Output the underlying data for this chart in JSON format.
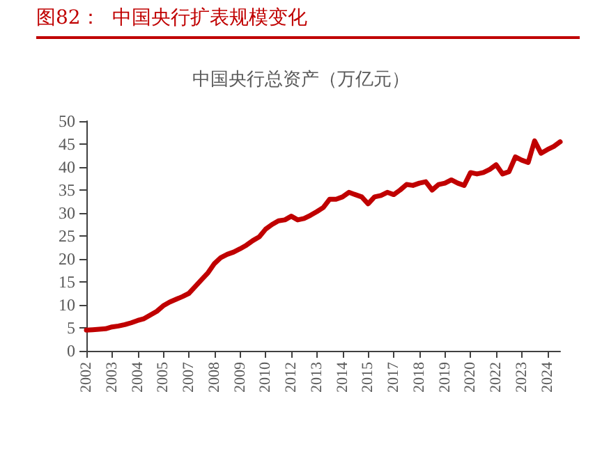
{
  "chart_data": {
    "type": "line",
    "title": "图82：  中国央行扩表规模变化",
    "subtitle": "中国央行总资产（万亿元）",
    "categories": [
      "2002",
      null,
      null,
      null,
      "2003",
      null,
      null,
      null,
      "2004",
      null,
      null,
      null,
      "2005",
      null,
      null,
      null,
      "2007",
      null,
      null,
      null,
      "2008",
      null,
      null,
      null,
      "2009",
      null,
      null,
      null,
      "2010",
      null,
      null,
      null,
      "2012",
      null,
      null,
      null,
      "2013",
      null,
      null,
      null,
      "2014",
      null,
      null,
      null,
      "2015",
      null,
      null,
      null,
      "2017",
      null,
      null,
      null,
      "2018",
      null,
      null,
      null,
      "2019",
      null,
      null,
      null,
      "2020",
      null,
      null,
      null,
      "2022",
      null,
      null,
      null,
      "2023",
      null,
      null,
      null,
      "2024",
      null,
      null
    ],
    "series": [
      {
        "color": "#c00000",
        "values": [
          4.5,
          4.6,
          4.7,
          4.8,
          5.2,
          5.4,
          5.7,
          6.1,
          6.6,
          7.0,
          7.8,
          8.6,
          9.8,
          10.6,
          11.2,
          11.8,
          12.5,
          14.0,
          15.5,
          17.0,
          19.0,
          20.3,
          21.0,
          21.5,
          22.2,
          23.0,
          24.0,
          24.8,
          26.5,
          27.5,
          28.3,
          28.5,
          29.3,
          28.5,
          28.8,
          29.5,
          30.3,
          31.2,
          33.0,
          33.0,
          33.5,
          34.5,
          34.0,
          33.5,
          32.0,
          33.5,
          33.8,
          34.5,
          34.0,
          35.0,
          36.2,
          36.0,
          36.5,
          36.8,
          35.0,
          36.2,
          36.5,
          37.2,
          36.5,
          36.0,
          38.8,
          38.5,
          38.8,
          39.5,
          40.5,
          38.5,
          39.0,
          42.2,
          41.5,
          41.0,
          45.7,
          43.0,
          43.8,
          44.5,
          45.5
        ]
      }
    ],
    "ylim": [
      0,
      50
    ],
    "yticks": [
      0,
      5,
      10,
      15,
      20,
      25,
      30,
      35,
      40,
      45,
      50
    ],
    "grid": false,
    "marker": "none",
    "line_style": "solid"
  }
}
